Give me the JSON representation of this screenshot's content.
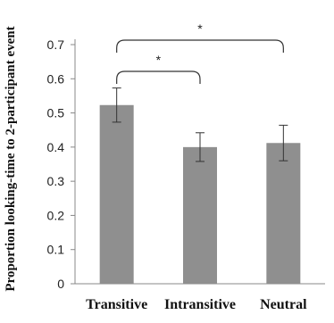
{
  "chart_data": {
    "type": "bar",
    "title": "",
    "xlabel": "",
    "ylabel": "Proportion looking-time to 2-participant event",
    "categories": [
      "Transitive",
      "Intransitive",
      "Neutral"
    ],
    "values": [
      0.523,
      0.4,
      0.412
    ],
    "error": [
      0.05,
      0.042,
      0.052
    ],
    "ylim": [
      0,
      0.7
    ],
    "yticks": [
      "0",
      "0.1",
      "0.2",
      "0.3",
      "0.4",
      "0.5",
      "0.6",
      "0.7"
    ],
    "grid": false,
    "bar_color": "#8f8f8f",
    "annotations": [
      {
        "from": "Transitive",
        "to": "Intransitive",
        "label": "*"
      },
      {
        "from": "Transitive",
        "to": "Neutral",
        "label": "*"
      }
    ]
  }
}
